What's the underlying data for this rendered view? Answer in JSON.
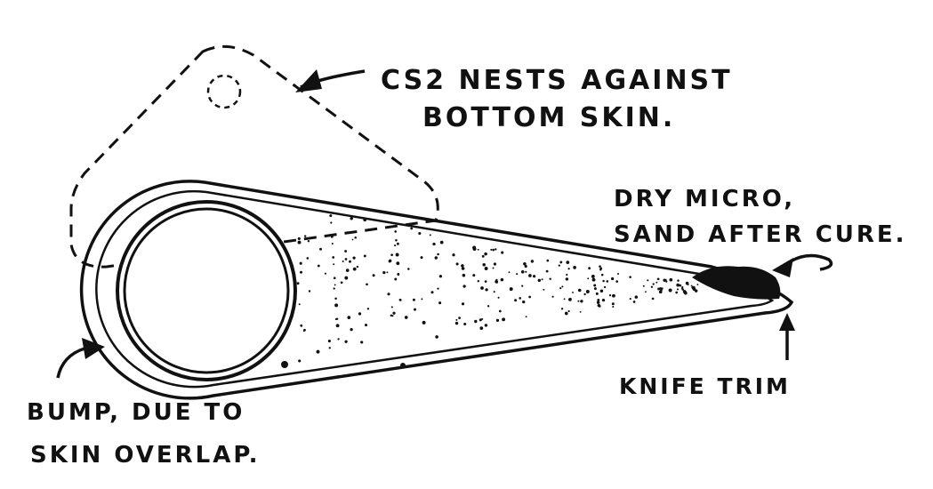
{
  "labels": {
    "cs2_line1": "CS2 NESTS AGAINST",
    "cs2_line2": "BOTTOM SKIN.",
    "micro_line1": "DRY MICRO,",
    "micro_line2": "SAND AFTER CURE.",
    "knife": "KNIFE TRIM",
    "bump_line1": "BUMP, DUE TO",
    "bump_line2": "SKIN OVERLAP."
  },
  "colors": {
    "ink": "#111111",
    "paper": "#ffffff"
  }
}
